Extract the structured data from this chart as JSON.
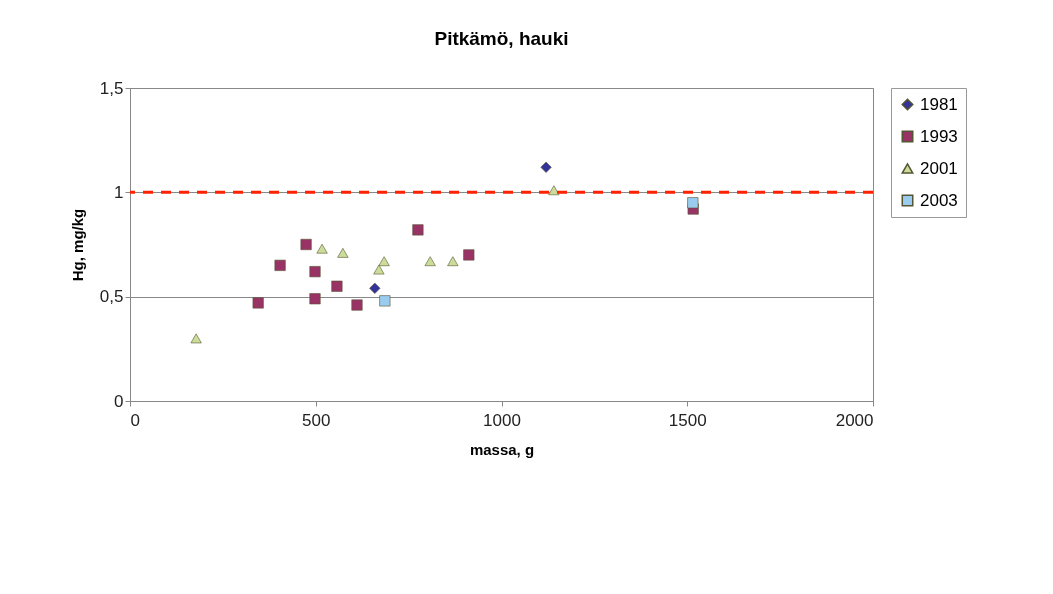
{
  "chart_data": {
    "type": "scatter",
    "title": "Pitkämö, hauki",
    "xlabel": "massa, g",
    "ylabel": "Hg, mg/kg",
    "xlim": [
      0,
      2000
    ],
    "xticks": [
      0,
      500,
      1000,
      1500,
      2000
    ],
    "ylim": [
      0,
      1.5
    ],
    "yticks": [
      0,
      {
        "value": 0.5,
        "label": "0,5"
      },
      1,
      {
        "value": 1.5,
        "label": "1,5"
      }
    ],
    "grid": "y",
    "legend": "right",
    "series": [
      {
        "name": "1981",
        "color": "#333399",
        "marker": "diamond",
        "x": [
          659,
          1120
        ],
        "values": [
          0.54,
          1.12
        ]
      },
      {
        "name": "1993",
        "color": "#993366",
        "marker": "square",
        "x": [
          474,
          404,
          498,
          345,
          498,
          557,
          611,
          775,
          912,
          1516
        ],
        "values": [
          0.75,
          0.65,
          0.62,
          0.47,
          0.49,
          0.55,
          0.46,
          0.82,
          0.7,
          0.92
        ]
      },
      {
        "name": "2001",
        "color": "#ccdd99",
        "marker": "triangle",
        "x": [
          178,
          517,
          573,
          684,
          670,
          808,
          869,
          1141
        ],
        "values": [
          0.3,
          0.73,
          0.71,
          0.67,
          0.63,
          0.67,
          0.67,
          1.01
        ]
      },
      {
        "name": "2003",
        "color": "#99ccee",
        "marker": "square",
        "x": [
          686,
          1515
        ],
        "values": [
          0.48,
          0.95
        ]
      }
    ],
    "ref_lines": [
      {
        "axis": "y",
        "value": 1,
        "color": "#ff2200",
        "line_style": "dashed"
      }
    ]
  }
}
